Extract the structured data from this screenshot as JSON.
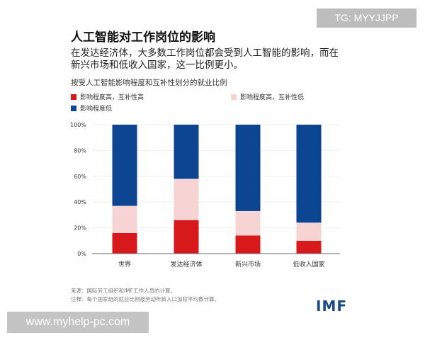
{
  "title": "人工智能对工作岗位的影响",
  "subtitle_line1": "在发达经济体，大多数工作岗位都会受到人工智能的影响，而在",
  "subtitle_line2": "新兴市场和低收入国家，这一比例更小。",
  "source": "来源：国际劳工组织和IMF工作人员的计算。",
  "note": "注释：每个国家组的就业比例按劳动年龄人口加权平均数计算。",
  "logo": "IMF",
  "watermark_top": "TG: MYYJJPP",
  "watermark_bottom": "www.myhelp-pc.com",
  "chart_data": {
    "type": "bar",
    "stacked": true,
    "title": "按受人工智能影响程度和互补性划分的就业比例",
    "categories": [
      "世界",
      "发达经济体",
      "新兴市场",
      "低收入国家"
    ],
    "series": [
      {
        "name": "影响程度高，互补性高",
        "color": "#d7191c",
        "values": [
          16,
          26,
          14,
          10
        ]
      },
      {
        "name": "影响程度高，互补性低",
        "color": "#f7d4d4",
        "values": [
          21,
          32,
          19,
          14
        ]
      },
      {
        "name": "影响程度低",
        "color": "#0b4591",
        "values": [
          63,
          42,
          67,
          76
        ]
      }
    ],
    "ylim": [
      0,
      100
    ],
    "yticks": [
      "0%",
      "20%",
      "40%",
      "60%",
      "80%",
      "100%"
    ],
    "grid": true,
    "legend": "top"
  }
}
